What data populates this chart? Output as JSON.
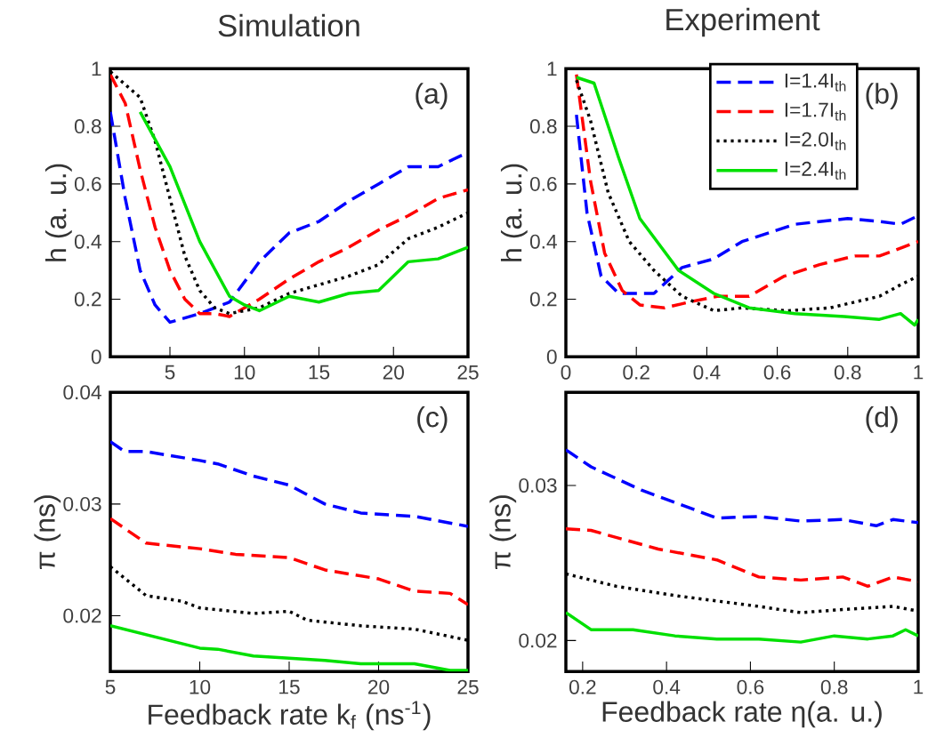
{
  "chart_data": [
    {
      "type": "line",
      "title": "Simulation",
      "ylabel": "h (a. u.)",
      "annotations": [
        "(a)"
      ],
      "xlim": [
        1,
        25
      ],
      "ylim": [
        0,
        1
      ],
      "xticks": [
        5,
        10,
        15,
        20,
        25
      ],
      "yticks": [
        0,
        0.2,
        0.4,
        0.6,
        0.8,
        1
      ],
      "series": [
        {
          "color": "#0000ff",
          "line_style": "dashed",
          "x": [
            1,
            2,
            3,
            4,
            5,
            7,
            9,
            11,
            13,
            15,
            17,
            19,
            21,
            23,
            25
          ],
          "values": [
            0.85,
            0.55,
            0.3,
            0.18,
            0.12,
            0.15,
            0.19,
            0.33,
            0.43,
            0.47,
            0.54,
            0.6,
            0.66,
            0.66,
            0.71
          ]
        },
        {
          "color": "#ff0000",
          "line_style": "dashed",
          "x": [
            1,
            2,
            3,
            4,
            5,
            6,
            7,
            8,
            9,
            11,
            13,
            15,
            17,
            19,
            21,
            23,
            25
          ],
          "values": [
            0.98,
            0.88,
            0.65,
            0.45,
            0.3,
            0.2,
            0.15,
            0.15,
            0.14,
            0.2,
            0.27,
            0.33,
            0.38,
            0.44,
            0.49,
            0.55,
            0.58
          ]
        },
        {
          "color": "#000000",
          "line_style": "dotted",
          "x": [
            1,
            3,
            4,
            5,
            6,
            7,
            8,
            9,
            11,
            13,
            15,
            17,
            19,
            21,
            23,
            25
          ],
          "values": [
            0.99,
            0.9,
            0.75,
            0.55,
            0.35,
            0.23,
            0.17,
            0.15,
            0.17,
            0.22,
            0.25,
            0.28,
            0.32,
            0.41,
            0.45,
            0.5
          ]
        },
        {
          "color": "#00e000",
          "line_style": "solid",
          "x": [
            3,
            5,
            7,
            9,
            10,
            11,
            13,
            15,
            17,
            19,
            21,
            23,
            25
          ],
          "values": [
            0.85,
            0.66,
            0.4,
            0.21,
            0.18,
            0.16,
            0.21,
            0.19,
            0.22,
            0.23,
            0.33,
            0.34,
            0.38
          ]
        }
      ]
    },
    {
      "type": "line",
      "title": "Experiment",
      "ylabel": "h (a. u.)",
      "annotations": [
        "(b)"
      ],
      "xlim": [
        0,
        1
      ],
      "ylim": [
        0,
        1
      ],
      "xticks": [
        0,
        0.2,
        0.4,
        0.6,
        0.8,
        1
      ],
      "yticks": [
        0,
        0.2,
        0.4,
        0.6,
        0.8,
        1
      ],
      "legend": "top right",
      "series": [
        {
          "name": "I=1.4I$_{th}$",
          "color": "#0000ff",
          "line_style": "dashed",
          "x": [
            0.03,
            0.06,
            0.1,
            0.15,
            0.25,
            0.33,
            0.42,
            0.5,
            0.65,
            0.8,
            0.89,
            0.95,
            1
          ],
          "values": [
            0.84,
            0.5,
            0.28,
            0.22,
            0.22,
            0.31,
            0.34,
            0.4,
            0.46,
            0.48,
            0.47,
            0.46,
            0.49
          ]
        },
        {
          "name": "I=1.7I$_{th}$",
          "color": "#ff0000",
          "line_style": "dashed",
          "x": [
            0.03,
            0.07,
            0.11,
            0.16,
            0.21,
            0.28,
            0.35,
            0.43,
            0.52,
            0.62,
            0.72,
            0.82,
            0.89,
            1
          ],
          "values": [
            0.98,
            0.61,
            0.36,
            0.23,
            0.18,
            0.17,
            0.19,
            0.21,
            0.21,
            0.28,
            0.32,
            0.35,
            0.35,
            0.4
          ]
        },
        {
          "name": "I=2.0I$_{th}$",
          "color": "#000000",
          "line_style": "dotted",
          "x": [
            0.03,
            0.07,
            0.12,
            0.18,
            0.25,
            0.33,
            0.42,
            0.5,
            0.63,
            0.75,
            0.89,
            0.95,
            1
          ],
          "values": [
            0.96,
            0.82,
            0.57,
            0.4,
            0.3,
            0.21,
            0.16,
            0.17,
            0.16,
            0.17,
            0.21,
            0.25,
            0.28
          ]
        },
        {
          "name": "I=2.4I$_{th}$",
          "color": "#00e000",
          "line_style": "solid",
          "x": [
            0.03,
            0.08,
            0.15,
            0.21,
            0.32,
            0.42,
            0.52,
            0.65,
            0.79,
            0.89,
            0.95,
            0.99,
            1
          ],
          "values": [
            0.97,
            0.95,
            0.69,
            0.48,
            0.3,
            0.22,
            0.17,
            0.15,
            0.14,
            0.13,
            0.15,
            0.11,
            0.13
          ]
        }
      ]
    },
    {
      "type": "line",
      "xlabel": "Feedback rate k$_{f}$ (ns$^{-1}$)",
      "ylabel": "π (ns)",
      "annotations": [
        "(c)"
      ],
      "xlim": [
        5,
        25
      ],
      "ylim": [
        0.015,
        0.04
      ],
      "xticks": [
        5,
        10,
        15,
        20,
        25
      ],
      "yticks": [
        0.02,
        0.03,
        0.04
      ],
      "series": [
        {
          "color": "#0000ff",
          "line_style": "dashed",
          "x": [
            5,
            5.8,
            7,
            10,
            11,
            13,
            15,
            17,
            19,
            22,
            25
          ],
          "values": [
            0.0356,
            0.0347,
            0.0347,
            0.0339,
            0.0336,
            0.0325,
            0.0317,
            0.03,
            0.0292,
            0.0289,
            0.028
          ]
        },
        {
          "color": "#ff0000",
          "line_style": "dashed",
          "x": [
            5,
            7,
            10,
            12,
            15,
            17,
            20,
            22,
            24,
            25
          ],
          "values": [
            0.0287,
            0.0265,
            0.026,
            0.0255,
            0.0252,
            0.0241,
            0.0233,
            0.0222,
            0.022,
            0.021
          ]
        },
        {
          "color": "#000000",
          "line_style": "dotted",
          "x": [
            5,
            7,
            9,
            10,
            13,
            15,
            16,
            19,
            22,
            25
          ],
          "values": [
            0.0244,
            0.0218,
            0.0213,
            0.0207,
            0.0202,
            0.0204,
            0.0196,
            0.0191,
            0.0188,
            0.0178
          ]
        },
        {
          "color": "#00e000",
          "line_style": "solid",
          "x": [
            5,
            10,
            11,
            13,
            17,
            19,
            22,
            24,
            25
          ],
          "values": [
            0.0191,
            0.0171,
            0.017,
            0.0164,
            0.016,
            0.0157,
            0.0157,
            0.0151,
            0.0151
          ]
        }
      ]
    },
    {
      "type": "line",
      "xlabel": "Feedback rate η(a. u.)",
      "ylabel": "π (ns)",
      "annotations": [
        "(d)"
      ],
      "xlim": [
        0.16,
        1
      ],
      "ylim": [
        0.018,
        0.036
      ],
      "xticks": [
        0.2,
        0.4,
        0.6,
        0.8,
        1
      ],
      "yticks": [
        0.02,
        0.03
      ],
      "series": [
        {
          "color": "#0000ff",
          "line_style": "dashed",
          "x": [
            0.16,
            0.22,
            0.34,
            0.42,
            0.52,
            0.62,
            0.72,
            0.82,
            0.9,
            0.94,
            1
          ],
          "values": [
            0.0323,
            0.0312,
            0.0297,
            0.0289,
            0.0279,
            0.028,
            0.0277,
            0.0278,
            0.0274,
            0.0278,
            0.0276
          ]
        },
        {
          "color": "#ff0000",
          "line_style": "dashed",
          "x": [
            0.16,
            0.22,
            0.38,
            0.52,
            0.62,
            0.72,
            0.82,
            0.88,
            0.94,
            1
          ],
          "values": [
            0.0272,
            0.0271,
            0.0259,
            0.0252,
            0.0241,
            0.0239,
            0.0241,
            0.0235,
            0.0241,
            0.0238
          ]
        },
        {
          "color": "#000000",
          "line_style": "dotted",
          "x": [
            0.16,
            0.28,
            0.42,
            0.62,
            0.72,
            0.82,
            0.94,
            1
          ],
          "values": [
            0.0243,
            0.0235,
            0.0229,
            0.0222,
            0.0218,
            0.022,
            0.0222,
            0.0219
          ]
        },
        {
          "color": "#00e000",
          "line_style": "solid",
          "x": [
            0.16,
            0.22,
            0.32,
            0.42,
            0.52,
            0.62,
            0.72,
            0.8,
            0.88,
            0.94,
            0.97,
            1
          ],
          "values": [
            0.0218,
            0.0207,
            0.0207,
            0.0203,
            0.0201,
            0.0201,
            0.0199,
            0.0203,
            0.0201,
            0.0203,
            0.0207,
            0.0203
          ]
        }
      ]
    }
  ]
}
